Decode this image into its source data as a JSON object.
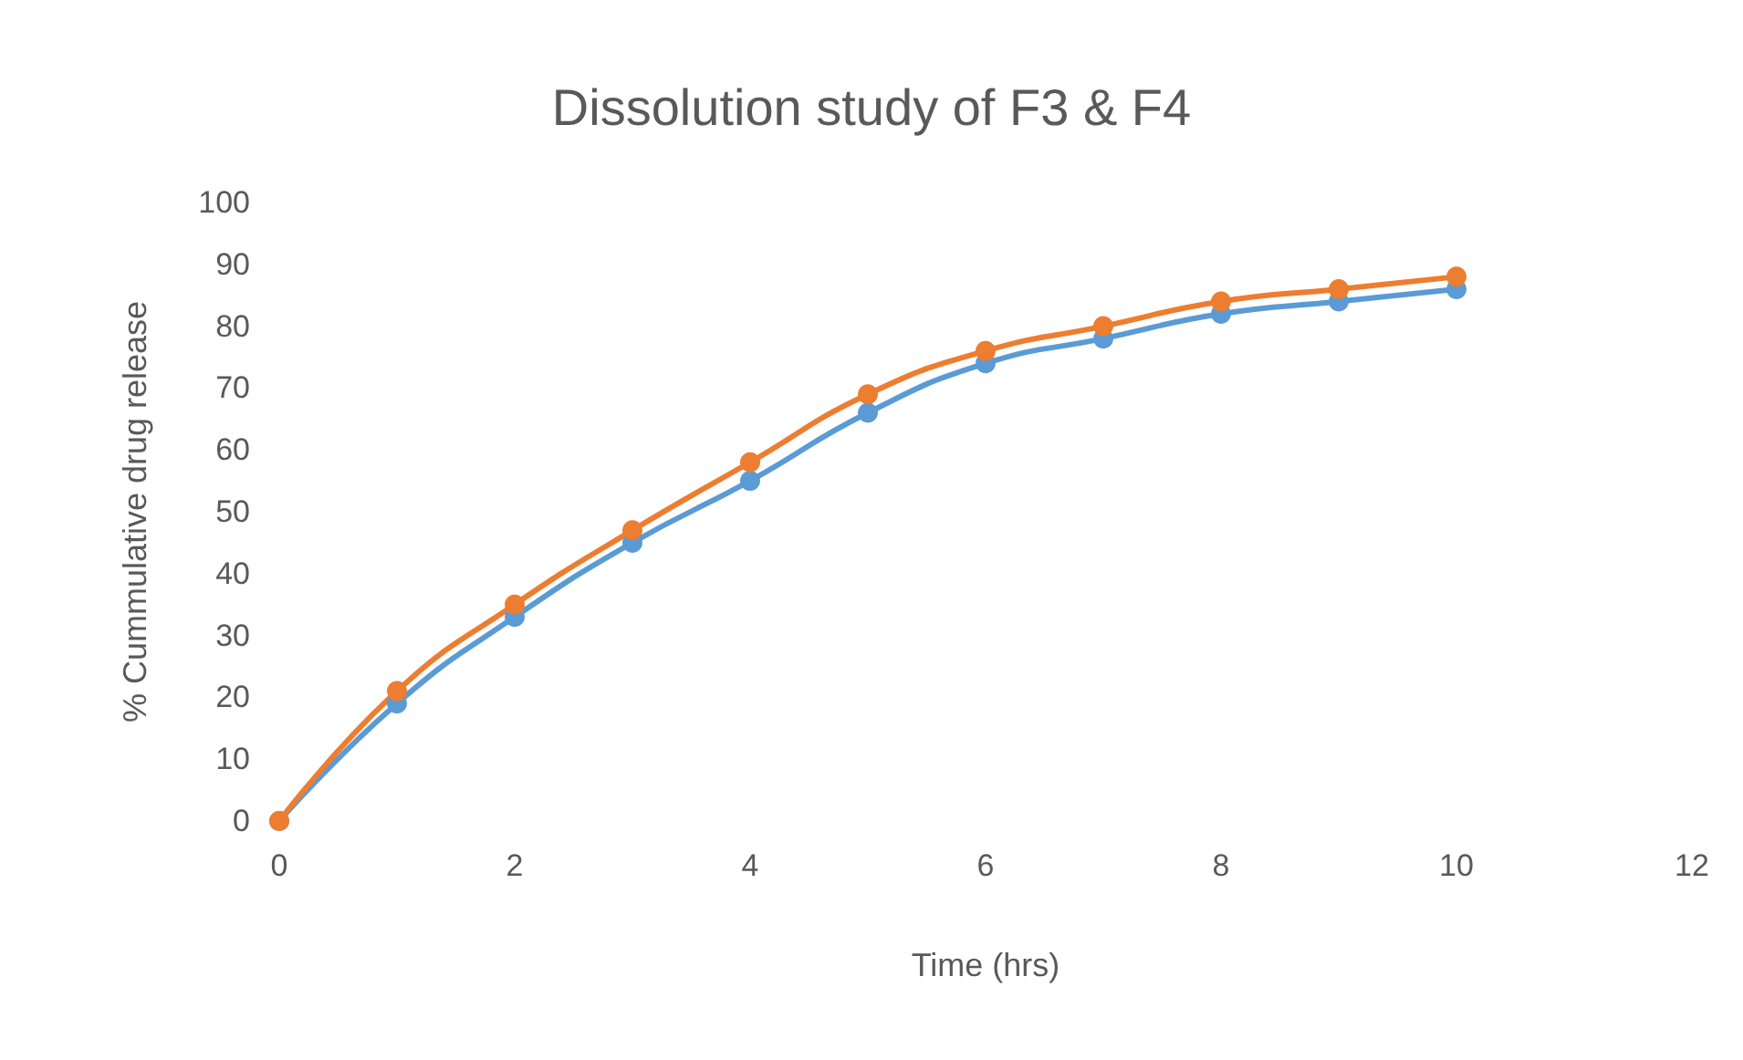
{
  "chart_data": {
    "type": "line",
    "title": "Dissolution study of F3 & F4",
    "xlabel": "Time (hrs)",
    "ylabel": "% Cummulative drug release",
    "x": [
      0,
      1,
      2,
      3,
      4,
      5,
      6,
      7,
      8,
      9,
      10
    ],
    "series": [
      {
        "color": "#5b9bd5",
        "values": [
          0,
          19,
          33,
          45,
          55,
          66,
          74,
          78,
          82,
          84,
          86
        ]
      },
      {
        "color": "#ed7d31",
        "values": [
          0,
          21,
          35,
          47,
          58,
          69,
          76,
          80,
          84,
          86,
          88
        ]
      }
    ],
    "xlim": [
      0,
      12
    ],
    "xticks": [
      0,
      2,
      4,
      6,
      8,
      10,
      12
    ],
    "ylim": [
      0,
      100
    ],
    "yticks": [
      0,
      10,
      20,
      30,
      40,
      50,
      60,
      70,
      80,
      90,
      100
    ],
    "grid": false,
    "marker": "circle",
    "line_style": "solid"
  }
}
